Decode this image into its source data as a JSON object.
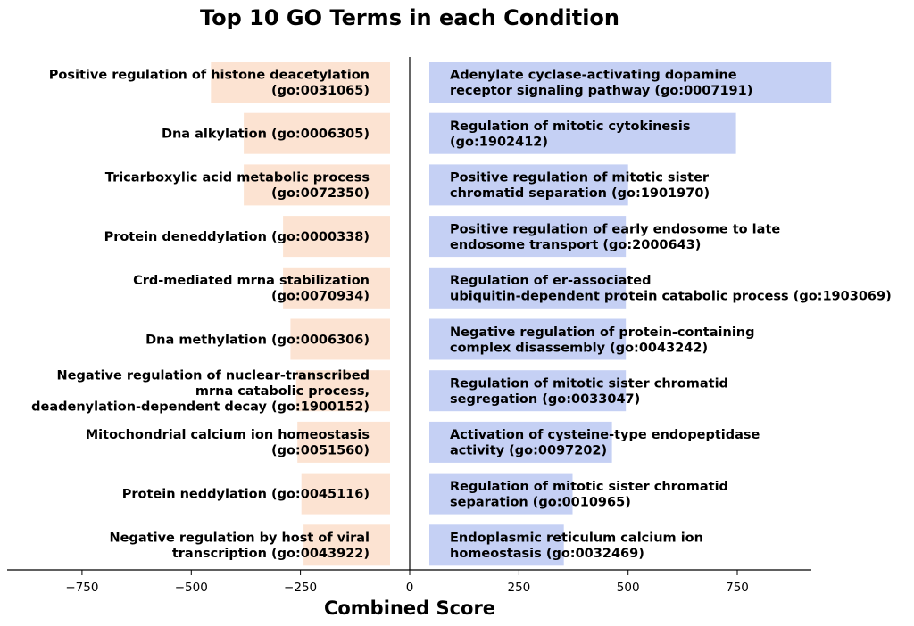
{
  "chart_data": {
    "type": "bar",
    "orientation": "horizontal-diverging",
    "title": "Top 10 GO Terms in each Condition",
    "xlabel": "Combined Score",
    "xlim": [
      -920,
      920
    ],
    "xticks": [
      -750,
      -500,
      -250,
      0,
      250,
      500,
      750
    ],
    "xtick_labels": [
      "−750",
      "−500",
      "−250",
      "0",
      "250",
      "500",
      "750"
    ],
    "colors": {
      "left": "#fce3d2",
      "right": "#c5d0f4",
      "axis": "#000000"
    },
    "series": [
      {
        "side": "left",
        "bars": [
          {
            "label": [
              "Positive regulation of histone deacetylation",
              "(go:0031065)"
            ],
            "value": -410
          },
          {
            "label": [
              "Dna alkylation (go:0006305)"
            ],
            "value": -335
          },
          {
            "label": [
              "Tricarboxylic acid metabolic process",
              "(go:0072350)"
            ],
            "value": -335
          },
          {
            "label": [
              "Protein deneddylation (go:0000338)"
            ],
            "value": -245
          },
          {
            "label": [
              "Crd-mediated mrna stabilization",
              "(go:0070934)"
            ],
            "value": -245
          },
          {
            "label": [
              "Dna methylation (go:0006306)"
            ],
            "value": -228
          },
          {
            "label": [
              "Negative regulation of nuclear-transcribed",
              "mrna catabolic process,",
              "deadenylation-dependent decay (go:1900152)"
            ],
            "value": -215
          },
          {
            "label": [
              "Mitochondrial calcium ion homeostasis",
              "(go:0051560)"
            ],
            "value": -212
          },
          {
            "label": [
              "Protein neddylation (go:0045116)"
            ],
            "value": -203
          },
          {
            "label": [
              "Negative regulation by host of viral",
              "transcription (go:0043922)"
            ],
            "value": -198
          }
        ]
      },
      {
        "side": "right",
        "bars": [
          {
            "label": [
              "Adenylate cyclase-activating dopamine",
              "receptor signaling pathway (go:0007191)"
            ],
            "value": 920
          },
          {
            "label": [
              "Regulation of mitotic cytokinesis",
              "(go:1902412)"
            ],
            "value": 702
          },
          {
            "label": [
              "Positive regulation of mitotic sister",
              "chromatid separation (go:1901970)"
            ],
            "value": 455
          },
          {
            "label": [
              "Positive regulation of early endosome to late",
              "endosome transport (go:2000643)"
            ],
            "value": 450
          },
          {
            "label": [
              "Regulation of er-associated",
              "ubiquitin-dependent protein catabolic process (go:1903069)"
            ],
            "value": 450
          },
          {
            "label": [
              "Negative regulation of protein-containing",
              "complex disassembly (go:0043242)"
            ],
            "value": 450
          },
          {
            "label": [
              "Regulation of mitotic sister chromatid",
              "segregation (go:0033047)"
            ],
            "value": 450
          },
          {
            "label": [
              "Activation of cysteine-type endopeptidase",
              "activity (go:0097202)"
            ],
            "value": 418
          },
          {
            "label": [
              "Regulation of mitotic sister chromatid",
              "separation (go:0010965)"
            ],
            "value": 328
          },
          {
            "label": [
              "Endoplasmic reticulum calcium ion",
              "homeostasis (go:0032469)"
            ],
            "value": 308
          }
        ]
      }
    ],
    "grid": false,
    "legend": "none"
  }
}
